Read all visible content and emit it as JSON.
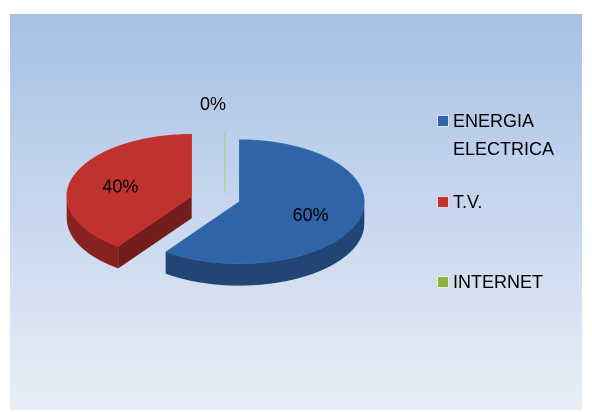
{
  "chart_data": {
    "type": "pie",
    "categories": [
      "ENERGIA ELECTRICA",
      "T.V.",
      "INTERNET"
    ],
    "values": [
      60,
      40,
      0
    ],
    "value_labels": [
      "60%",
      "40%",
      "0%"
    ],
    "colors": [
      "#2f64a8",
      "#c0322e",
      "#8cb43c"
    ],
    "legend": "right"
  }
}
